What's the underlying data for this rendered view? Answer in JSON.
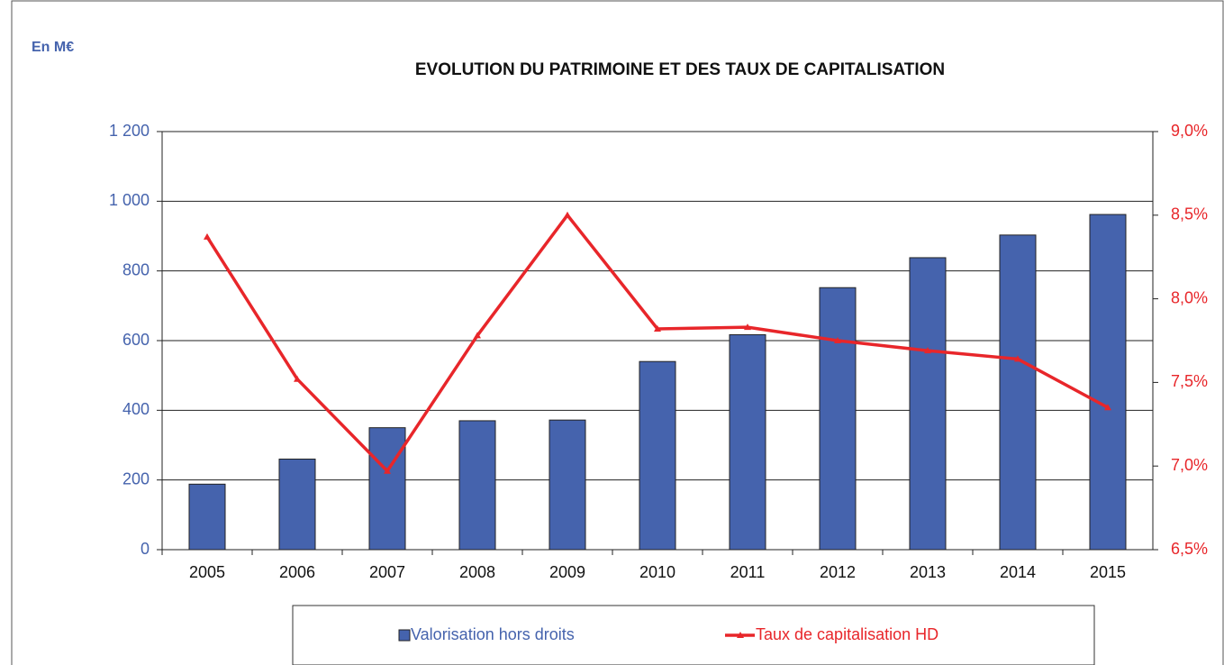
{
  "chart_data": {
    "type": "bar-line",
    "title": "EVOLUTION DU PATRIMOINE ET DES TAUX DE CAPITALISATION",
    "y_label": "En M€",
    "categories": [
      "2005",
      "2006",
      "2007",
      "2008",
      "2009",
      "2010",
      "2011",
      "2012",
      "2013",
      "2014",
      "2015"
    ],
    "series": [
      {
        "name": "Valorisation hors droits",
        "type": "bar",
        "color": "#4563ad",
        "values": [
          188,
          260,
          350,
          370,
          372,
          540,
          617,
          752,
          838,
          903,
          962
        ]
      },
      {
        "name": "Taux de capitalisation HD",
        "type": "line",
        "axis": "y2",
        "color": "#e8262a",
        "values": [
          8.37,
          7.52,
          6.97,
          7.78,
          8.5,
          7.82,
          7.83,
          7.75,
          7.69,
          7.64,
          7.35
        ]
      }
    ],
    "ylim": [
      0,
      1200
    ],
    "yticks": [
      0,
      200,
      400,
      600,
      800,
      {
        "value": 1000,
        "label": "1 000"
      },
      {
        "value": 1200,
        "label": "1 200"
      }
    ],
    "y2lim": [
      6.5,
      9.0
    ],
    "y2ticks": [
      {
        "value": 6.5,
        "label": "6,5%"
      },
      {
        "value": 7.0,
        "label": "7,0%"
      },
      {
        "value": 7.5,
        "label": "7,5%"
      },
      {
        "value": 8.0,
        "label": "8,0%"
      },
      {
        "value": 8.5,
        "label": "8,5%"
      },
      {
        "value": 9.0,
        "label": "9,0%"
      }
    ],
    "grid": true,
    "legend": "bottom"
  }
}
